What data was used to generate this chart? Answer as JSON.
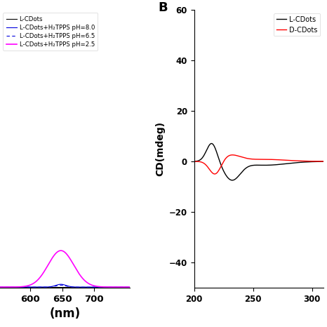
{
  "panel_A": {
    "xlabel": "(nm)",
    "xlim": [
      553,
      755
    ],
    "xticks": [
      600,
      650,
      700
    ],
    "ylim": [
      0,
      8
    ],
    "legend": [
      {
        "label": "L-CDots",
        "color": "#000000",
        "linestyle": "-"
      },
      {
        "label": "L-CDots+H₂TPPS pH=8.0",
        "color": "#0000dd",
        "linestyle": "-"
      },
      {
        "label": "L-CDots+H₂TPPS pH=6.5",
        "color": "#0000dd",
        "linestyle": "--"
      },
      {
        "label": "L-CDots+H₂TPPS pH=2.5",
        "color": "#ff00ff",
        "linestyle": "-"
      }
    ]
  },
  "panel_B": {
    "label": "B",
    "ylabel": "CD(mdeg)",
    "xlim": [
      200,
      310
    ],
    "xticks": [
      200,
      250,
      300
    ],
    "ylim": [
      -50,
      60
    ],
    "yticks": [
      -40,
      -20,
      0,
      20,
      40,
      60
    ],
    "legend": [
      {
        "label": "L-CDots",
        "color": "#000000",
        "linestyle": "-"
      },
      {
        "label": "D-CDots",
        "color": "#ff0000",
        "linestyle": "-"
      }
    ]
  },
  "background_color": "#ffffff"
}
